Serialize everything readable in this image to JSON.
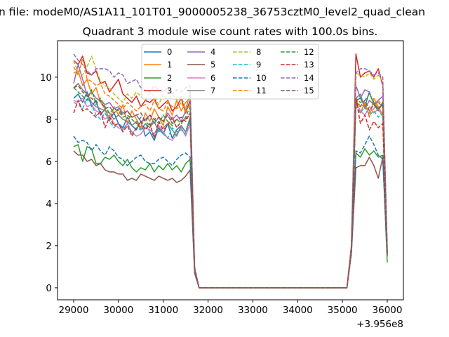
{
  "chart_data": {
    "type": "line",
    "suptitle": "n file: modeM0/AS1A11_101T01_9000005238_36753cztM0_level2_quad_clean",
    "title": "Quadrant 3 module wise count rates with 100.0s bins.",
    "xlabel": "",
    "ylabel": "",
    "x_offset_text": "+3.956e8",
    "xlim": [
      28640,
      36360
    ],
    "ylim": [
      -0.57,
      11.73
    ],
    "xticks": [
      29000,
      30000,
      31000,
      32000,
      33000,
      34000,
      35000,
      36000
    ],
    "xtick_labels": [
      "29000",
      "30000",
      "31000",
      "32000",
      "33000",
      "34000",
      "35000",
      "36000"
    ],
    "yticks": [
      0,
      2,
      4,
      6,
      8,
      10
    ],
    "ytick_labels": [
      "0",
      "2",
      "4",
      "6",
      "8",
      "10"
    ],
    "grid": false,
    "legend_placement": "top-center",
    "legend_columns": 4,
    "x": [
      29000,
      29100,
      29200,
      29300,
      29400,
      29500,
      29600,
      29700,
      29800,
      29900,
      30000,
      30100,
      30200,
      30300,
      30400,
      30500,
      30600,
      30700,
      30800,
      30900,
      31000,
      31100,
      31200,
      31300,
      31400,
      31500,
      31600,
      31700,
      31800,
      31900,
      32000,
      32100,
      32200,
      32300,
      32400,
      32500,
      32600,
      32700,
      32800,
      32900,
      33000,
      33100,
      33200,
      33300,
      33400,
      33500,
      33600,
      33700,
      33800,
      33900,
      34000,
      34100,
      34200,
      34300,
      34400,
      34500,
      34600,
      34700,
      34800,
      34900,
      35000,
      35100,
      35200,
      35300,
      35400,
      35500,
      35600,
      35700,
      35800,
      35900,
      36000
    ],
    "series": [
      {
        "name": "0",
        "color": "#1f77b4",
        "style": "solid",
        "values": [
          9.0,
          9.2,
          8.8,
          9.3,
          8.6,
          8.9,
          8.2,
          8.5,
          8.0,
          8.3,
          7.8,
          7.6,
          8.1,
          7.7,
          7.5,
          7.9,
          7.2,
          7.4,
          7.0,
          7.6,
          7.3,
          7.8,
          7.1,
          7.5,
          7.7,
          7.4,
          8.0,
          0.8,
          0,
          0,
          0,
          0,
          0,
          0,
          0,
          0,
          0,
          0,
          0,
          0,
          0,
          0,
          0,
          0,
          0,
          0,
          0,
          0,
          0,
          0,
          0,
          0,
          0,
          0,
          0,
          0,
          0,
          0,
          0,
          0,
          0,
          0,
          1.8,
          8.9,
          9.0,
          8.6,
          9.3,
          8.7,
          8.4,
          8.8,
          1.5
        ]
      },
      {
        "name": "1",
        "color": "#ff7f0e",
        "style": "solid",
        "values": [
          10.2,
          10.3,
          9.6,
          9.9,
          9.2,
          9.5,
          8.8,
          8.5,
          7.9,
          8.6,
          8.2,
          8.7,
          7.8,
          8.4,
          8.0,
          7.6,
          8.3,
          7.9,
          8.5,
          8.1,
          7.7,
          8.6,
          8.2,
          8.9,
          8.4,
          8.8,
          9.0,
          0.7,
          0,
          0,
          0,
          0,
          0,
          0,
          0,
          0,
          0,
          0,
          0,
          0,
          0,
          0,
          0,
          0,
          0,
          0,
          0,
          0,
          0,
          0,
          0,
          0,
          0,
          0,
          0,
          0,
          0,
          0,
          0,
          0,
          0,
          0,
          1.7,
          9.0,
          8.3,
          8.8,
          8.1,
          9.0,
          8.6,
          8.2,
          1.6
        ]
      },
      {
        "name": "2",
        "color": "#2ca02c",
        "style": "solid",
        "values": [
          6.7,
          6.8,
          6.0,
          6.7,
          6.6,
          5.9,
          5.9,
          6.2,
          6.1,
          6.3,
          6.0,
          5.8,
          6.1,
          5.7,
          5.5,
          5.7,
          5.6,
          5.9,
          5.5,
          5.8,
          5.6,
          5.9,
          5.6,
          5.8,
          5.5,
          5.9,
          6.1,
          0.8,
          0,
          0,
          0,
          0,
          0,
          0,
          0,
          0,
          0,
          0,
          0,
          0,
          0,
          0,
          0,
          0,
          0,
          0,
          0,
          0,
          0,
          0,
          0,
          0,
          0,
          0,
          0,
          0,
          0,
          0,
          0,
          0,
          0,
          0,
          1.9,
          6.4,
          6.2,
          6.6,
          6.3,
          6.5,
          6.2,
          6.3,
          1.2
        ]
      },
      {
        "name": "3",
        "color": "#d62728",
        "style": "solid",
        "values": [
          10.8,
          10.6,
          11.0,
          10.2,
          10.1,
          10.3,
          9.7,
          9.8,
          9.3,
          9.6,
          9.9,
          9.2,
          9.0,
          8.8,
          9.1,
          8.6,
          8.9,
          8.8,
          9.0,
          8.5,
          8.7,
          8.9,
          8.4,
          8.6,
          9.0,
          8.3,
          8.9,
          0.9,
          0,
          0,
          0,
          0,
          0,
          0,
          0,
          0,
          0,
          0,
          0,
          0,
          0,
          0,
          0,
          0,
          0,
          0,
          0,
          0,
          0,
          0,
          0,
          0,
          0,
          0,
          0,
          0,
          0,
          0,
          0,
          0,
          0,
          0,
          2.0,
          11.1,
          10.0,
          10.2,
          10.3,
          10.0,
          10.4,
          9.6,
          1.8
        ]
      },
      {
        "name": "4",
        "color": "#9467bd",
        "style": "solid",
        "values": [
          9.7,
          10.6,
          9.9,
          9.1,
          9.3,
          9.0,
          8.9,
          8.7,
          8.8,
          8.5,
          8.6,
          8.3,
          8.4,
          8.1,
          8.2,
          7.9,
          8.0,
          8.2,
          7.8,
          8.1,
          7.9,
          8.3,
          8.0,
          8.2,
          7.9,
          8.4,
          9.3,
          0.9,
          0,
          0,
          0,
          0,
          0,
          0,
          0,
          0,
          0,
          0,
          0,
          0,
          0,
          0,
          0,
          0,
          0,
          0,
          0,
          0,
          0,
          0,
          0,
          0,
          0,
          0,
          0,
          0,
          0,
          0,
          0,
          0,
          0,
          0,
          1.8,
          9.6,
          9.0,
          9.4,
          9.3,
          8.7,
          8.9,
          9.1,
          1.7
        ]
      },
      {
        "name": "5",
        "color": "#8c564b",
        "style": "solid",
        "values": [
          6.5,
          6.3,
          6.3,
          6.0,
          6.1,
          5.8,
          5.9,
          5.6,
          5.5,
          5.5,
          5.4,
          5.4,
          5.1,
          5.2,
          5.1,
          5.4,
          5.3,
          5.2,
          5.1,
          5.3,
          5.2,
          5.1,
          5.2,
          5.0,
          5.1,
          5.3,
          5.6,
          0.7,
          0,
          0,
          0,
          0,
          0,
          0,
          0,
          0,
          0,
          0,
          0,
          0,
          0,
          0,
          0,
          0,
          0,
          0,
          0,
          0,
          0,
          0,
          0,
          0,
          0,
          0,
          0,
          0,
          0,
          0,
          0,
          0,
          0,
          0,
          1.6,
          5.7,
          5.8,
          5.8,
          6.2,
          5.8,
          5.2,
          6.2,
          1.5
        ]
      },
      {
        "name": "6",
        "color": "#e377c2",
        "style": "solid",
        "values": [
          8.9,
          8.8,
          9.0,
          8.6,
          8.7,
          8.4,
          8.3,
          8.0,
          8.2,
          7.8,
          7.6,
          7.5,
          7.8,
          7.4,
          7.2,
          7.3,
          7.6,
          7.5,
          7.3,
          7.7,
          7.4,
          7.1,
          7.0,
          7.3,
          7.6,
          7.2,
          7.8,
          0.8,
          0,
          0,
          0,
          0,
          0,
          0,
          0,
          0,
          0,
          0,
          0,
          0,
          0,
          0,
          0,
          0,
          0,
          0,
          0,
          0,
          0,
          0,
          0,
          0,
          0,
          0,
          0,
          0,
          0,
          0,
          0,
          0,
          0,
          0,
          1.7,
          8.8,
          8.4,
          8.2,
          8.6,
          8.3,
          8.5,
          8.1,
          1.6
        ]
      },
      {
        "name": "7",
        "color": "#7f7f7f",
        "style": "solid",
        "values": [
          9.5,
          9.7,
          9.4,
          9.2,
          8.8,
          8.6,
          8.5,
          8.4,
          8.3,
          8.0,
          8.2,
          8.0,
          7.9,
          7.7,
          7.9,
          7.5,
          7.8,
          7.6,
          7.9,
          7.4,
          7.6,
          7.8,
          7.5,
          7.2,
          7.7,
          7.4,
          8.1,
          0.8,
          0,
          0,
          0,
          0,
          0,
          0,
          0,
          0,
          0,
          0,
          0,
          0,
          0,
          0,
          0,
          0,
          0,
          0,
          0,
          0,
          0,
          0,
          0,
          0,
          0,
          0,
          0,
          0,
          0,
          0,
          0,
          0,
          0,
          0,
          1.8,
          9.0,
          9.2,
          8.5,
          8.9,
          8.7,
          8.8,
          8.6,
          1.6
        ]
      },
      {
        "name": "8",
        "color": "#bcbd22",
        "style": "dashed",
        "values": [
          10.8,
          10.2,
          10.1,
          10.5,
          11.0,
          10.4,
          9.8,
          9.6,
          9.5,
          9.2,
          9.0,
          8.8,
          9.2,
          9.0,
          9.3,
          9.1,
          8.9,
          9.3,
          9.1,
          8.7,
          9.2,
          8.8,
          9.2,
          8.9,
          9.1,
          8.5,
          9.3,
          0.9,
          0,
          0,
          0,
          0,
          0,
          0,
          0,
          0,
          0,
          0,
          0,
          0,
          0,
          0,
          0,
          0,
          0,
          0,
          0,
          0,
          0,
          0,
          0,
          0,
          0,
          0,
          0,
          0,
          0,
          0,
          0,
          0,
          0,
          0,
          2.0,
          10.2,
          10.1,
          10.0,
          10.2,
          9.9,
          10.1,
          9.8,
          1.7
        ]
      },
      {
        "name": "9",
        "color": "#17becf",
        "style": "dashed",
        "values": [
          8.8,
          8.7,
          8.5,
          9.0,
          8.7,
          8.2,
          8.0,
          8.3,
          7.9,
          7.6,
          7.8,
          7.5,
          7.8,
          7.3,
          7.6,
          7.5,
          7.8,
          7.4,
          7.2,
          7.5,
          7.3,
          7.1,
          7.6,
          7.4,
          7.5,
          7.3,
          7.9,
          0.8,
          0,
          0,
          0,
          0,
          0,
          0,
          0,
          0,
          0,
          0,
          0,
          0,
          0,
          0,
          0,
          0,
          0,
          0,
          0,
          0,
          0,
          0,
          0,
          0,
          0,
          0,
          0,
          0,
          0,
          0,
          0,
          0,
          0,
          0,
          1.8,
          8.6,
          8.3,
          8.6,
          8.2,
          8.4,
          8.1,
          8.3,
          1.5
        ]
      },
      {
        "name": "10",
        "color": "#1f77b4",
        "style": "dashed",
        "values": [
          7.2,
          6.9,
          7.0,
          6.9,
          6.5,
          6.8,
          6.5,
          6.3,
          6.7,
          6.5,
          6.2,
          6.1,
          5.8,
          6.0,
          6.2,
          6.3,
          6.0,
          5.9,
          5.9,
          6.1,
          6.2,
          6.0,
          5.8,
          6.1,
          6.3,
          6.4,
          6.2,
          0.7,
          0,
          0,
          0,
          0,
          0,
          0,
          0,
          0,
          0,
          0,
          0,
          0,
          0,
          0,
          0,
          0,
          0,
          0,
          0,
          0,
          0,
          0,
          0,
          0,
          0,
          0,
          0,
          0,
          0,
          0,
          0,
          0,
          0,
          0,
          1.7,
          6.5,
          6.4,
          6.8,
          7.2,
          6.8,
          6.3,
          6.1,
          1.5
        ]
      },
      {
        "name": "11",
        "color": "#ff7f0e",
        "style": "dashed",
        "values": [
          10.5,
          10.1,
          10.9,
          9.9,
          9.8,
          9.6,
          9.7,
          9.2,
          9.1,
          8.9,
          8.7,
          8.5,
          8.8,
          8.6,
          8.4,
          8.6,
          8.7,
          8.4,
          8.9,
          8.5,
          8.4,
          8.8,
          8.6,
          8.5,
          8.8,
          8.4,
          8.7,
          0.8,
          0,
          0,
          0,
          0,
          0,
          0,
          0,
          0,
          0,
          0,
          0,
          0,
          0,
          0,
          0,
          0,
          0,
          0,
          0,
          0,
          0,
          0,
          0,
          0,
          0,
          0,
          0,
          0,
          0,
          0,
          0,
          0,
          0,
          0,
          1.9,
          9.0,
          8.6,
          8.7,
          8.3,
          8.5,
          8.9,
          8.6,
          1.6
        ]
      },
      {
        "name": "12",
        "color": "#2ca02c",
        "style": "dashed",
        "values": [
          9.5,
          9.3,
          9.1,
          8.9,
          9.4,
          8.7,
          9.0,
          8.6,
          8.3,
          8.5,
          8.4,
          8.1,
          8.2,
          8.0,
          7.8,
          8.1,
          7.9,
          7.7,
          8.0,
          7.8,
          8.2,
          7.9,
          7.7,
          8.0,
          7.8,
          8.1,
          8.6,
          0.8,
          0,
          0,
          0,
          0,
          0,
          0,
          0,
          0,
          0,
          0,
          0,
          0,
          0,
          0,
          0,
          0,
          0,
          0,
          0,
          0,
          0,
          0,
          0,
          0,
          0,
          0,
          0,
          0,
          0,
          0,
          0,
          0,
          0,
          0,
          1.9,
          9.0,
          8.8,
          8.9,
          9.2,
          8.8,
          8.5,
          8.7,
          1.5
        ]
      },
      {
        "name": "13",
        "color": "#d62728",
        "style": "dashed",
        "values": [
          8.3,
          8.9,
          8.4,
          8.5,
          8.3,
          8.1,
          8.4,
          7.6,
          8.1,
          7.7,
          7.8,
          7.4,
          7.7,
          7.2,
          7.6,
          7.9,
          7.5,
          7.8,
          7.1,
          7.9,
          7.5,
          7.7,
          8.1,
          7.6,
          7.9,
          8.0,
          8.3,
          0.9,
          0,
          0,
          0,
          0,
          0,
          0,
          0,
          0,
          0,
          0,
          0,
          0,
          0,
          0,
          0,
          0,
          0,
          0,
          0,
          0,
          0,
          0,
          0,
          0,
          0,
          0,
          0,
          0,
          0,
          0,
          0,
          0,
          0,
          0,
          1.9,
          9.0,
          7.8,
          8.2,
          7.5,
          7.9,
          7.6,
          7.8,
          1.6
        ]
      },
      {
        "name": "14",
        "color": "#9467bd",
        "style": "dashed",
        "values": [
          11.1,
          10.8,
          10.6,
          10.3,
          10.1,
          10.4,
          10.4,
          10.4,
          10.3,
          10.0,
          10.2,
          10.1,
          9.7,
          9.8,
          9.9,
          9.5,
          9.4,
          9.3,
          9.6,
          9.4,
          9.3,
          9.5,
          9.2,
          9.4,
          9.3,
          9.5,
          9.6,
          1.0,
          0,
          0,
          0,
          0,
          0,
          0,
          0,
          0,
          0,
          0,
          0,
          0,
          0,
          0,
          0,
          0,
          0,
          0,
          0,
          0,
          0,
          0,
          0,
          0,
          0,
          0,
          0,
          0,
          0,
          0,
          0,
          0,
          0,
          0,
          2.0,
          10.2,
          10.4,
          10.4,
          10.3,
          10.1,
          10.2,
          10.0,
          1.8
        ]
      },
      {
        "name": "15",
        "color": "#8c564b",
        "style": "dashed",
        "values": [
          9.5,
          9.6,
          9.3,
          9.1,
          9.0,
          8.8,
          8.9,
          8.5,
          8.6,
          8.3,
          8.5,
          8.2,
          8.4,
          8.1,
          8.2,
          8.3,
          7.9,
          8.2,
          8.0,
          8.1,
          7.9,
          8.2,
          7.8,
          8.0,
          8.1,
          7.9,
          8.3,
          0.8,
          0,
          0,
          0,
          0,
          0,
          0,
          0,
          0,
          0,
          0,
          0,
          0,
          0,
          0,
          0,
          0,
          0,
          0,
          0,
          0,
          0,
          0,
          0,
          0,
          0,
          0,
          0,
          0,
          0,
          0,
          0,
          0,
          0,
          0,
          1.8,
          8.8,
          8.6,
          8.9,
          8.4,
          8.7,
          8.5,
          8.8,
          1.6
        ]
      }
    ]
  }
}
